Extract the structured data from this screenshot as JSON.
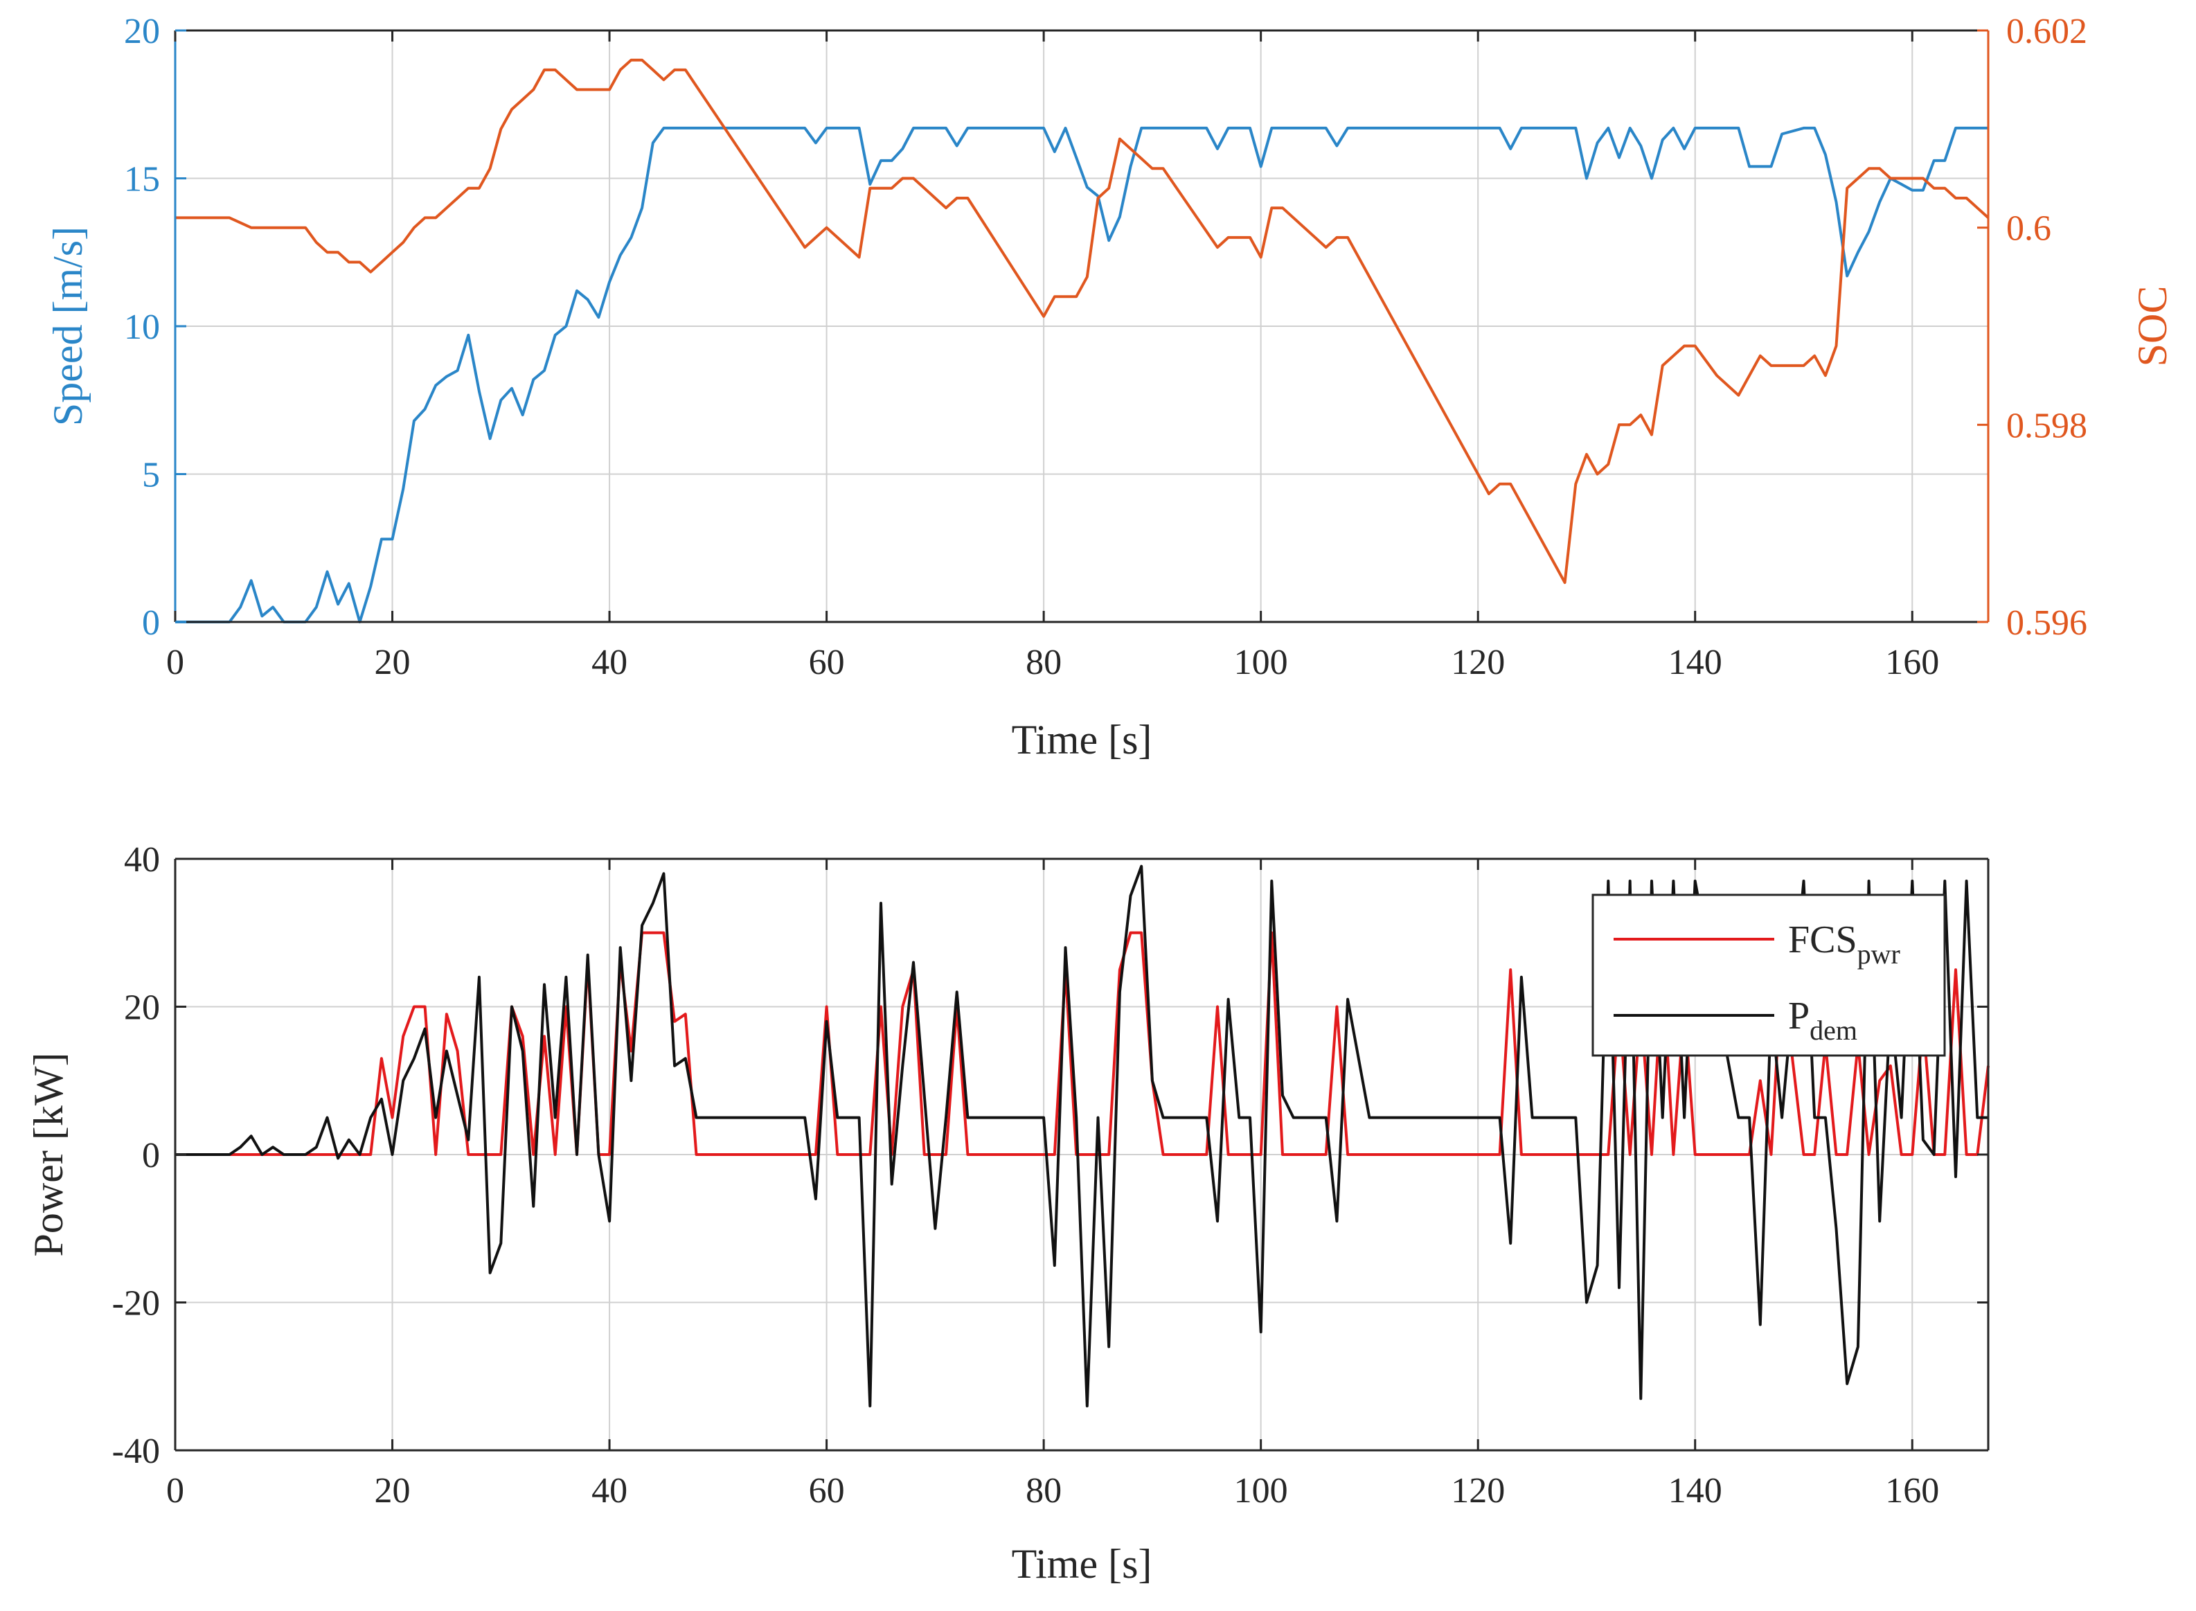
{
  "colors": {
    "speed": "#2a86c8",
    "soc": "#e0571f",
    "fcs": "#e31a1c",
    "pdem": "#111111",
    "grid": "#d0d0d0",
    "axis": "#262626"
  },
  "chart_data": [
    {
      "type": "line",
      "title": "",
      "xlabel": "Time [s]",
      "ylabel": "Speed [m/s]",
      "ylabel_right": "SOC",
      "xlim": [
        0,
        167
      ],
      "ylim": [
        0,
        20
      ],
      "ylim_right": [
        0.596,
        0.602
      ],
      "xticks": [
        0,
        20,
        40,
        60,
        80,
        100,
        120,
        140,
        160
      ],
      "xtick_labels": [
        "0",
        "20",
        "40",
        "60",
        "80",
        "100",
        "120",
        "140",
        "160"
      ],
      "yticks": [
        0,
        5,
        10,
        15,
        20
      ],
      "ytick_labels": [
        "0",
        "5",
        "10",
        "15",
        "20"
      ],
      "yticks_right": [
        0.596,
        0.598,
        0.6,
        0.602
      ],
      "ytick_labels_right": [
        "0.596",
        "0.598",
        "0.6",
        "0.602"
      ],
      "grid": true,
      "series": [
        {
          "name": "Speed",
          "axis": "left",
          "x": [
            0,
            5,
            6,
            7,
            8,
            9,
            10,
            11,
            12,
            13,
            14,
            15,
            16,
            17,
            18,
            19,
            20,
            21,
            22,
            23,
            24,
            25,
            26,
            27,
            28,
            29,
            30,
            31,
            32,
            33,
            34,
            35,
            36,
            37,
            38,
            39,
            40,
            41,
            42,
            43,
            44,
            45,
            46,
            47,
            48,
            58,
            59,
            60,
            63,
            64,
            65,
            66,
            67,
            68,
            71,
            72,
            73,
            80,
            81,
            82,
            83,
            84,
            85,
            86,
            87,
            88,
            89,
            90,
            95,
            96,
            97,
            99,
            100,
            101,
            106,
            107,
            108,
            122,
            123,
            124,
            129,
            130,
            131,
            132,
            133,
            134,
            135,
            136,
            137,
            138,
            139,
            140,
            144,
            145,
            146,
            147,
            148,
            150,
            151,
            152,
            153,
            154,
            155,
            156,
            157,
            158,
            159,
            160,
            161,
            162,
            163,
            164,
            165,
            167
          ],
          "values": [
            0,
            0,
            0.5,
            1.4,
            0.2,
            0.5,
            0,
            0,
            0,
            0.5,
            1.7,
            0.6,
            1.3,
            0,
            1.2,
            2.8,
            2.8,
            4.5,
            6.8,
            7.2,
            8,
            8.3,
            8.5,
            9.7,
            7.8,
            6.2,
            7.5,
            7.9,
            7,
            8.2,
            8.5,
            9.7,
            10,
            11.2,
            10.9,
            10.3,
            11.5,
            12.4,
            13,
            14,
            16.2,
            16.7,
            16.7,
            16.7,
            16.7,
            16.7,
            16.2,
            16.7,
            16.7,
            14.8,
            15.6,
            15.6,
            16,
            16.7,
            16.7,
            16.1,
            16.7,
            16.7,
            15.9,
            16.7,
            15.7,
            14.7,
            14.4,
            12.9,
            13.7,
            15.4,
            16.7,
            16.7,
            16.7,
            16,
            16.7,
            16.7,
            15.4,
            16.7,
            16.7,
            16.1,
            16.7,
            16.7,
            16,
            16.7,
            16.7,
            15,
            16.2,
            16.7,
            15.7,
            16.7,
            16.1,
            15,
            16.3,
            16.7,
            16,
            16.7,
            16.7,
            15.4,
            15.4,
            15.4,
            16.5,
            16.7,
            16.7,
            15.8,
            14.2,
            11.7,
            12.5,
            13.2,
            14.2,
            15,
            14.8,
            14.6,
            14.6,
            15.6,
            15.6,
            16.7,
            16.7,
            16.7
          ]
        },
        {
          "name": "SOC",
          "axis": "right",
          "x": [
            0,
            5,
            6,
            7,
            8,
            9,
            10,
            12,
            13,
            14,
            15,
            16,
            17,
            18,
            19,
            20,
            21,
            22,
            23,
            24,
            25,
            26,
            27,
            28,
            29,
            30,
            31,
            32,
            33,
            34,
            35,
            36,
            37,
            38,
            39,
            40,
            41,
            42,
            43,
            44,
            45,
            46,
            47,
            58,
            59,
            60,
            61,
            62,
            63,
            64,
            65,
            66,
            67,
            68,
            69,
            70,
            71,
            72,
            73,
            80,
            81,
            82,
            83,
            84,
            85,
            86,
            87,
            88,
            89,
            90,
            91,
            96,
            97,
            98,
            99,
            100,
            101,
            102,
            106,
            107,
            108,
            121,
            122,
            123,
            128,
            129,
            130,
            131,
            132,
            133,
            134,
            135,
            136,
            137,
            138,
            139,
            140,
            142,
            144,
            145,
            146,
            147,
            148,
            149,
            150,
            151,
            152,
            153,
            154,
            155,
            156,
            157,
            158,
            159,
            160,
            161,
            162,
            163,
            164,
            165,
            166,
            167
          ],
          "values": [
            0.6001,
            0.6001,
            0.60005,
            0.6,
            0.6,
            0.6,
            0.6,
            0.6,
            0.59985,
            0.59975,
            0.59975,
            0.59965,
            0.59965,
            0.59955,
            0.59965,
            0.59975,
            0.59985,
            0.6,
            0.6001,
            0.6001,
            0.6002,
            0.6003,
            0.6004,
            0.6004,
            0.6006,
            0.601,
            0.6012,
            0.6013,
            0.6014,
            0.6016,
            0.6016,
            0.6015,
            0.6014,
            0.6014,
            0.6014,
            0.6014,
            0.6016,
            0.6017,
            0.6017,
            0.6016,
            0.6015,
            0.6016,
            0.6016,
            0.5998,
            0.5999,
            0.6,
            0.5999,
            0.5998,
            0.5997,
            0.6004,
            0.6004,
            0.6004,
            0.6005,
            0.6005,
            0.6004,
            0.6003,
            0.6002,
            0.6003,
            0.6003,
            0.5991,
            0.5993,
            0.5993,
            0.5993,
            0.5995,
            0.6003,
            0.6004,
            0.6009,
            0.6008,
            0.6007,
            0.6006,
            0.6006,
            0.5998,
            0.5999,
            0.5999,
            0.5999,
            0.5997,
            0.6002,
            0.6002,
            0.5998,
            0.5999,
            0.5999,
            0.5973,
            0.5974,
            0.5974,
            0.5964,
            0.5974,
            0.5977,
            0.5975,
            0.5976,
            0.598,
            0.598,
            0.5981,
            0.5979,
            0.5986,
            0.5987,
            0.5988,
            0.5988,
            0.5985,
            0.5983,
            0.5985,
            0.5987,
            0.5986,
            0.5986,
            0.5986,
            0.5986,
            0.5987,
            0.5985,
            0.5988,
            0.6004,
            0.6005,
            0.6006,
            0.6006,
            0.6005,
            0.6005,
            0.6005,
            0.6005,
            0.6004,
            0.6004,
            0.6003,
            0.6003,
            0.6002,
            0.6001
          ]
        }
      ]
    },
    {
      "type": "line",
      "title": "",
      "xlabel": "Time [s]",
      "ylabel": "Power [kW]",
      "xlim": [
        0,
        167
      ],
      "ylim": [
        -40,
        40
      ],
      "xticks": [
        0,
        20,
        40,
        60,
        80,
        100,
        120,
        140,
        160
      ],
      "xtick_labels": [
        "0",
        "20",
        "40",
        "60",
        "80",
        "100",
        "120",
        "140",
        "160"
      ],
      "yticks": [
        -40,
        -20,
        0,
        20,
        40
      ],
      "ytick_labels": [
        "-40",
        "-20",
        "0",
        "20",
        "40"
      ],
      "grid": true,
      "legend": {
        "position": "top-right",
        "entries": [
          {
            "label": "FCS",
            "sub": "pwr",
            "series": "FCS_pwr"
          },
          {
            "label": "P",
            "sub": "dem",
            "series": "P_dem"
          }
        ]
      },
      "series": [
        {
          "name": "FCS_pwr",
          "x": [
            0,
            18,
            19,
            20,
            21,
            22,
            23,
            24,
            25,
            26,
            27,
            28,
            29,
            30,
            31,
            32,
            33,
            34,
            35,
            36,
            37,
            38,
            39,
            40,
            41,
            42,
            43,
            44,
            45,
            46,
            47,
            48,
            59,
            60,
            61,
            63,
            64,
            65,
            66,
            67,
            68,
            69,
            71,
            72,
            73,
            80,
            81,
            82,
            83,
            84,
            85,
            86,
            87,
            88,
            89,
            90,
            91,
            95,
            96,
            97,
            99,
            100,
            101,
            102,
            106,
            107,
            108,
            122,
            123,
            124,
            129,
            130,
            131,
            132,
            133,
            134,
            135,
            136,
            137,
            138,
            139,
            140,
            144,
            145,
            146,
            147,
            148,
            150,
            151,
            152,
            153,
            154,
            155,
            156,
            157,
            158,
            159,
            160,
            161,
            162,
            163,
            164,
            165,
            166,
            167
          ],
          "values": [
            0,
            0,
            13,
            5,
            16,
            20,
            20,
            0,
            19,
            14,
            0,
            0,
            0,
            0,
            20,
            16,
            0,
            16,
            0,
            20,
            0,
            26,
            0,
            0,
            26,
            14,
            30,
            30,
            30,
            18,
            19,
            0,
            0,
            20,
            0,
            0,
            0,
            20,
            0,
            20,
            25,
            0,
            0,
            20,
            0,
            0,
            0,
            25,
            0,
            0,
            0,
            0,
            25,
            30,
            30,
            10,
            0,
            0,
            20,
            0,
            0,
            0,
            30,
            0,
            0,
            20,
            0,
            0,
            25,
            0,
            0,
            0,
            0,
            0,
            20,
            0,
            20,
            0,
            25,
            0,
            20,
            0,
            0,
            0,
            10,
            0,
            25,
            0,
            0,
            15,
            0,
            0,
            15,
            0,
            10,
            12,
            0,
            0,
            18,
            0,
            0,
            25,
            0,
            0,
            12
          ]
        },
        {
          "name": "P_dem",
          "x": [
            0,
            5,
            6,
            7,
            8,
            9,
            10,
            12,
            13,
            14,
            15,
            16,
            17,
            18,
            19,
            20,
            21,
            22,
            23,
            24,
            25,
            26,
            27,
            28,
            29,
            30,
            31,
            32,
            33,
            34,
            35,
            36,
            37,
            38,
            39,
            40,
            41,
            42,
            43,
            44,
            45,
            46,
            47,
            48,
            58,
            59,
            60,
            61,
            62,
            63,
            64,
            65,
            66,
            67,
            68,
            69,
            70,
            71,
            72,
            73,
            80,
            81,
            82,
            83,
            84,
            85,
            86,
            87,
            88,
            89,
            90,
            91,
            95,
            96,
            97,
            98,
            99,
            100,
            101,
            102,
            103,
            106,
            107,
            108,
            110,
            122,
            123,
            124,
            125,
            129,
            130,
            131,
            132,
            133,
            134,
            135,
            136,
            137,
            138,
            139,
            140,
            144,
            145,
            146,
            147,
            148,
            150,
            151,
            152,
            153,
            154,
            155,
            156,
            157,
            158,
            159,
            160,
            161,
            162,
            163,
            164,
            165,
            166,
            167
          ],
          "values": [
            0,
            0,
            1,
            2.5,
            0,
            1,
            0,
            0,
            1,
            5,
            -0.5,
            2,
            0,
            5,
            7.5,
            0,
            10,
            13,
            17,
            5,
            14,
            8,
            2,
            24,
            -16,
            -12,
            20,
            14,
            -7,
            23,
            5,
            24,
            0,
            27,
            0,
            -9,
            28,
            10,
            31,
            34,
            38,
            12,
            13,
            5,
            5,
            -6,
            18,
            5,
            5,
            5,
            -34,
            34,
            -4,
            12,
            26,
            8,
            -10,
            5,
            22,
            5,
            5,
            -15,
            28,
            5,
            -34,
            5,
            -26,
            22,
            35,
            39,
            10,
            5,
            5,
            -9,
            21,
            5,
            5,
            -24,
            37,
            8,
            5,
            5,
            -9,
            21,
            5,
            5,
            -12,
            24,
            5,
            5,
            -20,
            -15,
            37,
            -18,
            37,
            -33,
            37,
            5,
            37,
            5,
            37,
            5,
            5,
            -23,
            20,
            5,
            37,
            5,
            5,
            -10,
            -31,
            -26,
            37,
            -9,
            20,
            5,
            37,
            2,
            0,
            37,
            -3,
            37,
            5,
            5
          ]
        }
      ]
    }
  ]
}
